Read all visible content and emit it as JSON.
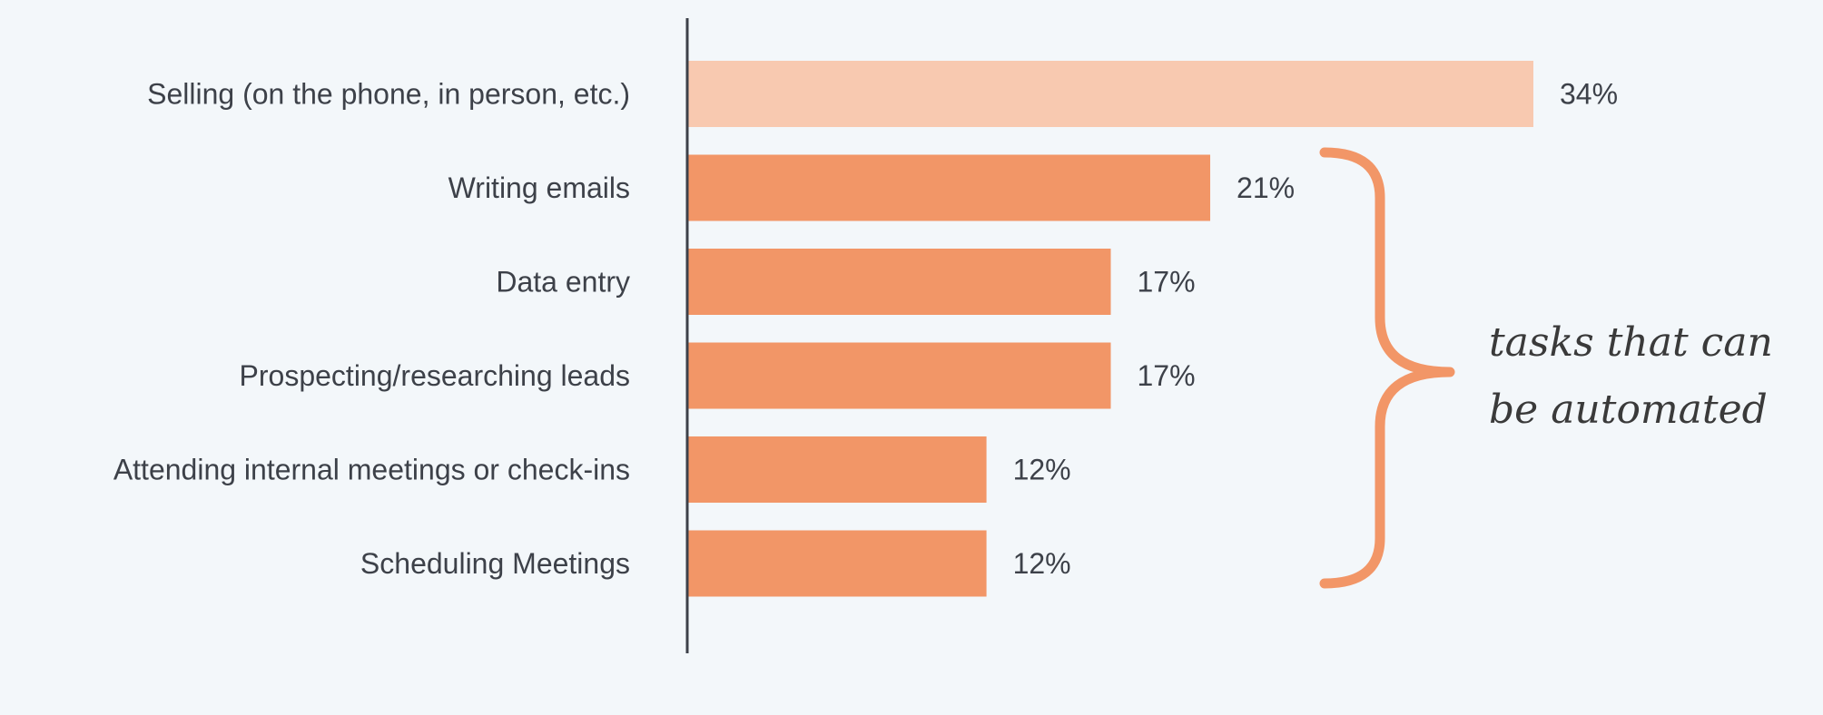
{
  "chart_data": {
    "type": "bar",
    "orientation": "horizontal",
    "categories": [
      "Selling (on the phone, in person, etc.)",
      "Writing emails",
      "Data entry",
      "Prospecting/researching leads",
      "Attending internal meetings or check-ins",
      "Scheduling Meetings"
    ],
    "values": [
      34,
      21,
      17,
      17,
      12,
      12
    ],
    "value_labels": [
      "34%",
      "21%",
      "17%",
      "17%",
      "12%",
      "12%"
    ],
    "unit": "%",
    "xlim": [
      0,
      40
    ],
    "grid": false,
    "legend": "none",
    "bar_colors": [
      "#f8c9b0",
      "#f29667",
      "#f29667",
      "#f29667",
      "#f29667",
      "#f29667"
    ],
    "annotation": {
      "lines": [
        "tasks that can",
        "be automated"
      ],
      "brace_color": "#f29667",
      "spans_categories": [
        "Writing emails",
        "Scheduling Meetings"
      ]
    }
  },
  "colors": {
    "background": "#f3f7fa",
    "axis": "#3d4149",
    "text": "#3d4149"
  }
}
